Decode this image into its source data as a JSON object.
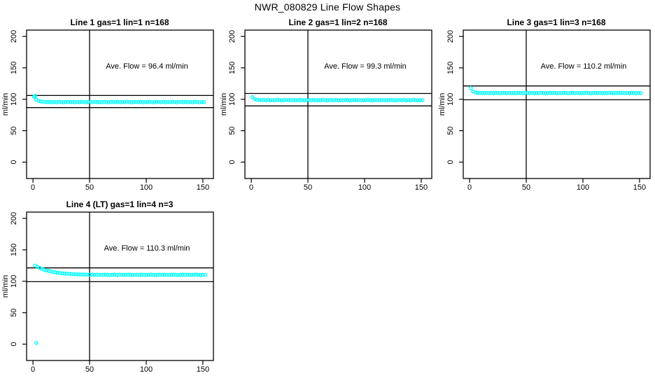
{
  "page": {
    "title": "NWR_080829  Line Flow Shapes",
    "background": "#ffffff"
  },
  "style": {
    "point_color": "#00ffff",
    "line_color": "#000000",
    "text_color": "#000000"
  },
  "axes": {
    "x_ticks": [
      0,
      50,
      100,
      150
    ],
    "y_ticks": [
      0,
      50,
      100,
      150,
      200
    ],
    "xlim": [
      -5.6,
      159.3
    ],
    "ylim": [
      -26,
      210
    ],
    "vline_x": 50,
    "grid": false,
    "xlabel": ""
  },
  "chart_data": [
    {
      "type": "scatter",
      "marker": "open-circle",
      "title": "Line 1 gas=1 lin=1 n=168",
      "gas": 1,
      "lin": 1,
      "n": 168,
      "ave_flow": 96.4,
      "annotation": "Ave. Flow =  96.4  ml/min",
      "ylabel": "ml/min",
      "ref_lines": [
        106.0,
        86.8
      ],
      "points": [
        [
          1,
          104
        ],
        [
          2,
          105.3
        ],
        [
          3,
          99.4
        ],
        [
          5,
          97.3
        ],
        [
          7,
          96.4
        ],
        [
          9,
          96
        ],
        [
          11,
          95.9
        ],
        [
          13,
          95.4
        ],
        [
          15,
          96
        ],
        [
          17,
          95.2
        ],
        [
          19,
          95.7
        ],
        [
          21,
          95.3
        ],
        [
          23,
          96.1
        ],
        [
          25,
          95.6
        ],
        [
          27,
          95.1
        ],
        [
          29,
          95.8
        ],
        [
          31,
          95.9
        ],
        [
          33,
          95.4
        ],
        [
          35,
          96
        ],
        [
          37,
          95.2
        ],
        [
          39,
          95.7
        ],
        [
          41,
          95.3
        ],
        [
          43,
          96.1
        ],
        [
          45,
          95.6
        ],
        [
          47,
          95.1
        ],
        [
          49,
          95.8
        ],
        [
          51,
          95.9
        ],
        [
          53,
          95.4
        ],
        [
          55,
          96
        ],
        [
          57,
          95.2
        ],
        [
          59,
          95.7
        ],
        [
          61,
          95.3
        ],
        [
          63,
          96.1
        ],
        [
          65,
          95.6
        ],
        [
          67,
          95.1
        ],
        [
          69,
          95.8
        ],
        [
          71,
          95.9
        ],
        [
          73,
          95.4
        ],
        [
          75,
          96
        ],
        [
          77,
          95.2
        ],
        [
          79,
          95.7
        ],
        [
          81,
          95.3
        ],
        [
          83,
          96.1
        ],
        [
          85,
          95.6
        ],
        [
          87,
          95.1
        ],
        [
          89,
          95.8
        ],
        [
          91,
          95.9
        ],
        [
          93,
          95.4
        ],
        [
          95,
          96
        ],
        [
          97,
          95.2
        ],
        [
          99,
          95.7
        ],
        [
          101,
          95.3
        ],
        [
          103,
          96.1
        ],
        [
          105,
          95.6
        ],
        [
          107,
          95.1
        ],
        [
          109,
          95.8
        ],
        [
          111,
          95.9
        ],
        [
          113,
          95.4
        ],
        [
          115,
          96
        ],
        [
          117,
          95.2
        ],
        [
          119,
          95.7
        ],
        [
          121,
          95.3
        ],
        [
          123,
          96.1
        ],
        [
          125,
          95.6
        ],
        [
          127,
          95.1
        ],
        [
          129,
          95.8
        ],
        [
          131,
          95.9
        ],
        [
          133,
          95.4
        ],
        [
          135,
          96
        ],
        [
          137,
          95.2
        ],
        [
          139,
          95.7
        ],
        [
          141,
          95.3
        ],
        [
          143,
          96.1
        ],
        [
          145,
          95.6
        ],
        [
          147,
          95.1
        ],
        [
          149,
          95.8
        ],
        [
          151,
          95.5
        ]
      ]
    },
    {
      "type": "scatter",
      "marker": "open-circle",
      "title": "Line 2 gas=1 lin=2 n=168",
      "gas": 1,
      "lin": 2,
      "n": 168,
      "ave_flow": 99.3,
      "annotation": "Ave. Flow =  99.3  ml/min",
      "ylabel": "ml/min",
      "ref_lines": [
        109.2,
        89.4
      ],
      "points": [
        [
          1,
          103.5
        ],
        [
          3,
          100.4
        ],
        [
          5,
          99.3
        ],
        [
          7,
          98.9
        ],
        [
          9,
          98.7
        ],
        [
          11,
          98.9
        ],
        [
          13,
          98.4
        ],
        [
          15,
          99
        ],
        [
          17,
          98.2
        ],
        [
          19,
          98.7
        ],
        [
          21,
          98.3
        ],
        [
          23,
          99.1
        ],
        [
          25,
          98.6
        ],
        [
          27,
          98.1
        ],
        [
          29,
          98.8
        ],
        [
          31,
          98.9
        ],
        [
          33,
          98.4
        ],
        [
          35,
          99
        ],
        [
          37,
          98.2
        ],
        [
          39,
          98.7
        ],
        [
          41,
          98.3
        ],
        [
          43,
          99.1
        ],
        [
          45,
          98.6
        ],
        [
          47,
          98.1
        ],
        [
          49,
          98.8
        ],
        [
          51,
          98.9
        ],
        [
          53,
          98.4
        ],
        [
          55,
          99
        ],
        [
          57,
          98.2
        ],
        [
          59,
          98.7
        ],
        [
          61,
          98.3
        ],
        [
          63,
          99.1
        ],
        [
          65,
          98.6
        ],
        [
          67,
          98.1
        ],
        [
          69,
          98.8
        ],
        [
          71,
          98.9
        ],
        [
          73,
          98.4
        ],
        [
          75,
          99
        ],
        [
          77,
          98.2
        ],
        [
          79,
          98.7
        ],
        [
          81,
          98.3
        ],
        [
          83,
          99.1
        ],
        [
          85,
          98.6
        ],
        [
          87,
          98.1
        ],
        [
          89,
          98.8
        ],
        [
          91,
          98.9
        ],
        [
          93,
          98.4
        ],
        [
          95,
          99
        ],
        [
          97,
          98.2
        ],
        [
          99,
          98.7
        ],
        [
          101,
          98.3
        ],
        [
          103,
          99.1
        ],
        [
          105,
          98.6
        ],
        [
          107,
          98.1
        ],
        [
          109,
          98.8
        ],
        [
          111,
          98.9
        ],
        [
          113,
          98.4
        ],
        [
          115,
          99
        ],
        [
          117,
          98.2
        ],
        [
          119,
          98.7
        ],
        [
          121,
          98.3
        ],
        [
          123,
          99.1
        ],
        [
          125,
          98.6
        ],
        [
          127,
          98.1
        ],
        [
          129,
          98.8
        ],
        [
          131,
          98.9
        ],
        [
          133,
          98.4
        ],
        [
          135,
          99
        ],
        [
          137,
          98.2
        ],
        [
          139,
          98.7
        ],
        [
          141,
          98.3
        ],
        [
          143,
          99.1
        ],
        [
          145,
          98.6
        ],
        [
          147,
          98.1
        ],
        [
          149,
          98.8
        ],
        [
          151,
          98.5
        ]
      ]
    },
    {
      "type": "scatter",
      "marker": "open-circle",
      "title": "Line 3 gas=1 lin=3 n=168",
      "gas": 1,
      "lin": 3,
      "n": 168,
      "ave_flow": 110.2,
      "annotation": "Ave. Flow =  110.2  ml/min",
      "ylabel": "ml/min",
      "ref_lines": [
        121.2,
        99.2
      ],
      "points": [
        [
          1,
          118
        ],
        [
          3,
          112.6
        ],
        [
          5,
          110.9
        ],
        [
          7,
          110.4
        ],
        [
          9,
          110.1
        ],
        [
          11,
          110.3
        ],
        [
          13,
          109.8
        ],
        [
          15,
          110.4
        ],
        [
          17,
          109.6
        ],
        [
          19,
          110.1
        ],
        [
          21,
          109.7
        ],
        [
          23,
          110.5
        ],
        [
          25,
          110
        ],
        [
          27,
          109.5
        ],
        [
          29,
          110.2
        ],
        [
          31,
          110.3
        ],
        [
          33,
          109.8
        ],
        [
          35,
          110.4
        ],
        [
          37,
          109.6
        ],
        [
          39,
          110.1
        ],
        [
          41,
          109.7
        ],
        [
          43,
          110.5
        ],
        [
          45,
          110
        ],
        [
          47,
          109.5
        ],
        [
          49,
          110.2
        ],
        [
          51,
          110.3
        ],
        [
          53,
          109.8
        ],
        [
          55,
          110.4
        ],
        [
          57,
          109.6
        ],
        [
          59,
          110.1
        ],
        [
          61,
          109.7
        ],
        [
          63,
          110.5
        ],
        [
          65,
          110
        ],
        [
          67,
          109.5
        ],
        [
          69,
          110.2
        ],
        [
          71,
          110.3
        ],
        [
          73,
          109.8
        ],
        [
          75,
          110.4
        ],
        [
          77,
          109.6
        ],
        [
          79,
          110.1
        ],
        [
          81,
          109.7
        ],
        [
          83,
          110.5
        ],
        [
          85,
          110
        ],
        [
          87,
          109.5
        ],
        [
          89,
          110.2
        ],
        [
          91,
          110.3
        ],
        [
          93,
          109.8
        ],
        [
          95,
          110.4
        ],
        [
          97,
          109.6
        ],
        [
          99,
          110.1
        ],
        [
          101,
          109.7
        ],
        [
          103,
          110.5
        ],
        [
          105,
          110
        ],
        [
          107,
          109.5
        ],
        [
          109,
          110.2
        ],
        [
          111,
          110.3
        ],
        [
          113,
          109.8
        ],
        [
          115,
          110.4
        ],
        [
          117,
          109.6
        ],
        [
          119,
          110.1
        ],
        [
          121,
          109.7
        ],
        [
          123,
          110.5
        ],
        [
          125,
          110
        ],
        [
          127,
          109.5
        ],
        [
          129,
          110.2
        ],
        [
          131,
          110.3
        ],
        [
          133,
          109.8
        ],
        [
          135,
          110.4
        ],
        [
          137,
          109.6
        ],
        [
          139,
          110.1
        ],
        [
          141,
          109.7
        ],
        [
          143,
          110.5
        ],
        [
          145,
          110
        ],
        [
          147,
          109.5
        ],
        [
          149,
          110.2
        ],
        [
          151,
          109.9
        ]
      ]
    },
    {
      "type": "scatter",
      "marker": "open-circle",
      "title": "Line 4 (LT) gas=1 lin=4 n=3",
      "gas": 1,
      "lin": 4,
      "n": 3,
      "ave_flow": 110.3,
      "annotation": "Ave. Flow =  110.3  ml/min",
      "ylabel": "ml/min",
      "ref_lines": [
        121.3,
        99.3
      ],
      "points": [
        [
          3,
          2
        ],
        [
          2,
          125
        ],
        [
          4,
          123
        ],
        [
          6,
          121.2
        ],
        [
          8,
          119.7
        ],
        [
          10,
          118.3
        ],
        [
          12,
          117.3
        ],
        [
          14,
          116.4
        ],
        [
          16,
          115.5
        ],
        [
          18,
          114.8
        ],
        [
          20,
          114.2
        ],
        [
          22,
          113.6
        ],
        [
          24,
          113.1
        ],
        [
          26,
          112.7
        ],
        [
          28,
          112.3
        ],
        [
          30,
          112
        ],
        [
          32,
          111.8
        ],
        [
          34,
          111.5
        ],
        [
          36,
          111.3
        ],
        [
          38,
          111.1
        ],
        [
          40,
          111
        ],
        [
          42,
          110.9
        ],
        [
          44,
          110.7
        ],
        [
          46,
          110.7
        ],
        [
          48,
          110.6
        ],
        [
          50,
          110.5
        ],
        [
          52,
          110.6
        ],
        [
          54,
          110.2
        ],
        [
          56,
          110.6
        ],
        [
          58,
          110.1
        ],
        [
          60,
          110.4
        ],
        [
          62,
          110.1
        ],
        [
          64,
          110.7
        ],
        [
          66,
          110.3
        ],
        [
          68,
          109.9
        ],
        [
          70,
          110.4
        ],
        [
          72,
          110.6
        ],
        [
          74,
          110.2
        ],
        [
          76,
          110.6
        ],
        [
          78,
          110.1
        ],
        [
          80,
          110.4
        ],
        [
          82,
          110.1
        ],
        [
          84,
          110.7
        ],
        [
          86,
          110.3
        ],
        [
          88,
          109.9
        ],
        [
          90,
          110.4
        ],
        [
          92,
          110.6
        ],
        [
          94,
          110.2
        ],
        [
          96,
          110.6
        ],
        [
          98,
          110.1
        ],
        [
          100,
          110.4
        ],
        [
          102,
          110.1
        ],
        [
          104,
          110.7
        ],
        [
          106,
          110.3
        ],
        [
          108,
          109.9
        ],
        [
          110,
          110.4
        ],
        [
          112,
          110.6
        ],
        [
          114,
          110.2
        ],
        [
          116,
          110.6
        ],
        [
          118,
          110.1
        ],
        [
          120,
          110.4
        ],
        [
          122,
          110.1
        ],
        [
          124,
          110.7
        ],
        [
          126,
          110.3
        ],
        [
          128,
          109.9
        ],
        [
          130,
          110.4
        ],
        [
          132,
          110.6
        ],
        [
          134,
          110.2
        ],
        [
          136,
          110.6
        ],
        [
          138,
          110.1
        ],
        [
          140,
          110.4
        ],
        [
          142,
          110.1
        ],
        [
          144,
          110.7
        ],
        [
          146,
          110.3
        ],
        [
          148,
          109.9
        ],
        [
          150,
          110.4
        ],
        [
          152,
          110.2
        ]
      ]
    }
  ]
}
